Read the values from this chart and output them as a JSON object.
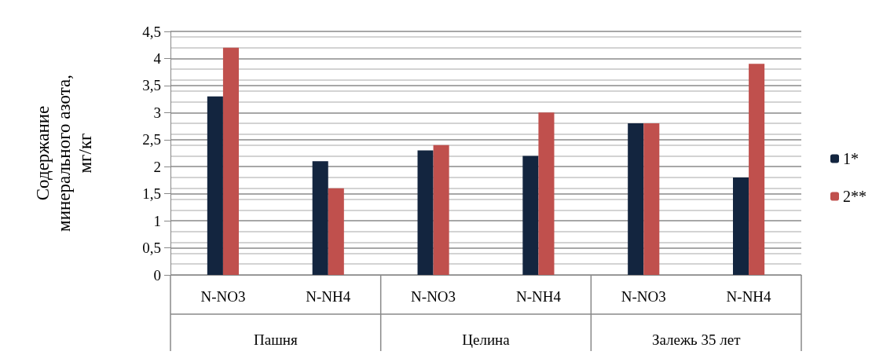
{
  "chart_data": {
    "type": "bar",
    "categories": [
      "N-NO3",
      "N-NH4",
      "N-NO3",
      "N-NH4",
      "N-NO3",
      "N-NH4"
    ],
    "annotations": [
      "Пашня",
      "Целина",
      "Залежь 35 лет"
    ],
    "ylabel": "Содержание\nминерального азота,\nмг/кг",
    "series": [
      {
        "name": "1*",
        "color": "#13253f",
        "values": [
          3.3,
          2.1,
          2.3,
          2.2,
          2.8,
          1.8
        ]
      },
      {
        "name": "2**",
        "color": "#c0504d",
        "values": [
          4.2,
          1.6,
          2.4,
          3.0,
          2.8,
          3.9
        ]
      }
    ],
    "ylim": [
      0,
      4.5
    ],
    "yticks": [
      0,
      {
        "value": 0.5,
        "label": "0,5"
      },
      1,
      {
        "value": 1.5,
        "label": "1,5"
      },
      2,
      {
        "value": 2.5,
        "label": "2,5"
      },
      3,
      {
        "value": 3.5,
        "label": "3,5"
      },
      4,
      {
        "value": 4.5,
        "label": "4,5"
      }
    ],
    "grid": true,
    "legend": "right"
  }
}
